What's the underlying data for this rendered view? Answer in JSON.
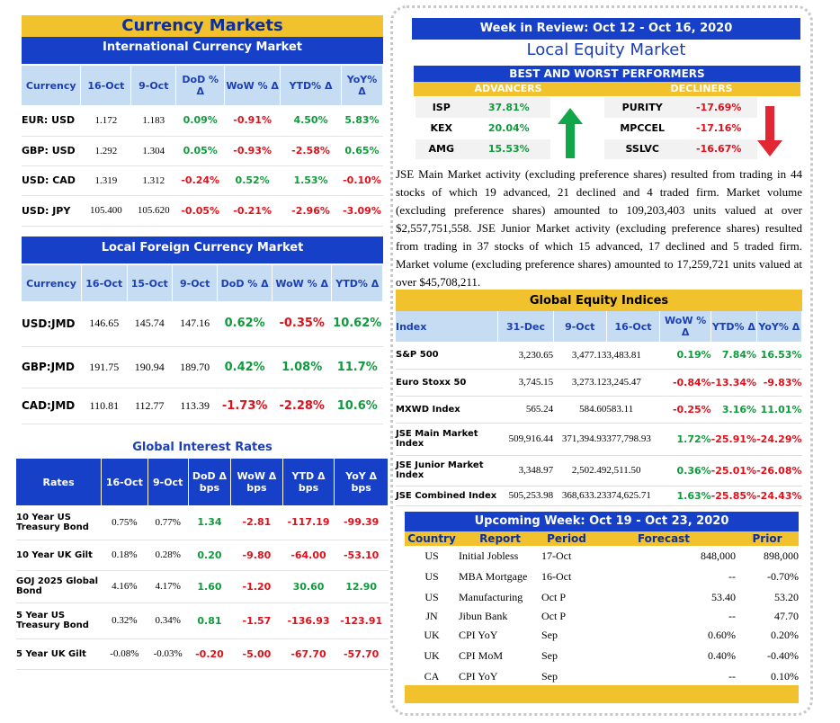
{
  "left": {
    "currency_markets": {
      "title": "Currency Markets",
      "subtitle": "International Currency Market",
      "headers": [
        "Currency",
        "16-Oct",
        "9-Oct",
        "DoD % Δ",
        "WoW % Δ",
        "YTD% Δ",
        "YoY% Δ"
      ],
      "rows": [
        [
          "EUR: USD",
          "1.172",
          "1.183",
          "0.09%",
          "-0.91%",
          "4.50%",
          "5.83%"
        ],
        [
          "GBP: USD",
          "1.292",
          "1.304",
          "0.05%",
          "-0.93%",
          "-2.58%",
          "0.65%"
        ],
        [
          "USD: CAD",
          "1.319",
          "1.312",
          "-0.24%",
          "0.52%",
          "1.53%",
          "-0.10%"
        ],
        [
          "USD: JPY",
          "105.400",
          "105.620",
          "-0.05%",
          "-0.21%",
          "-2.96%",
          "-3.09%"
        ]
      ]
    },
    "local_fx": {
      "title": "Local Foreign Currency Market",
      "headers": [
        "Currency",
        "16-Oct",
        "15-Oct",
        "9-Oct",
        "DoD % Δ",
        "WoW % Δ",
        "YTD% Δ"
      ],
      "rows": [
        [
          "USD:JMD",
          "146.65",
          "145.74",
          "147.16",
          "0.62%",
          "-0.35%",
          "10.62%"
        ],
        [
          "GBP:JMD",
          "191.75",
          "190.94",
          "189.70",
          "0.42%",
          "1.08%",
          "11.7%"
        ],
        [
          "CAD:JMD",
          "110.81",
          "112.77",
          "113.39",
          "-1.73%",
          "-2.28%",
          "10.6%"
        ]
      ]
    },
    "interest": {
      "title": "Global Interest Rates",
      "headers": [
        "Rates",
        "16-Oct",
        "9-Oct",
        "DoD Δ bps",
        "WoW Δ bps",
        "YTD Δ bps",
        "YoY Δ bps"
      ],
      "rows": [
        [
          "10 Year US Treasury Bond",
          "0.75%",
          "0.77%",
          "1.34",
          "-2.81",
          "-117.19",
          "-99.39"
        ],
        [
          "10 Year UK Gilt",
          "0.18%",
          "0.28%",
          "0.20",
          "-9.80",
          "-64.00",
          "-53.10"
        ],
        [
          "GOJ 2025 Global Bond",
          "4.16%",
          "4.17%",
          "1.60",
          "-1.20",
          "30.60",
          "12.90"
        ],
        [
          "5 Year US Treasury Bond",
          "0.32%",
          "0.34%",
          "0.81",
          "-1.57",
          "-136.93",
          "-123.91"
        ],
        [
          "5 Year UK Gilt",
          "-0.08%",
          "-0.03%",
          "-0.20",
          "-5.00",
          "-67.70",
          "-57.70"
        ]
      ]
    }
  },
  "right": {
    "week": "Week in Review:  Oct 12 - Oct 16, 2020",
    "local_equity": "Local Equity Market",
    "performers_title": "BEST AND WORST PERFORMERS",
    "adv_label": "ADVANCERS",
    "dec_label": "DECLINERS",
    "advancers": [
      [
        "ISP",
        "37.81%"
      ],
      [
        "KEX",
        "20.04%"
      ],
      [
        "AMG",
        "15.53%"
      ]
    ],
    "decliners": [
      [
        "PURITY",
        "-17.69%"
      ],
      [
        "MPCCEL",
        "-17.16%"
      ],
      [
        "SSLVC",
        "-16.67%"
      ]
    ],
    "paragraph": "JSE Main Market activity (excluding preference shares) resulted from trading in 44 stocks of which 19 advanced, 21 declined and 4 traded firm. Market volume (excluding preference shares) amounted to 109,203,403 units valued at over $2,557,751,558. JSE Junior Market activity (excluding preference shares) resulted from trading in 37 stocks of which 15 advanced, 17 declined and 5 traded firm. Market volume (excluding preference shares) amounted to 17,259,721 units valued at over $45,708,211.",
    "indices": {
      "title": "Global Equity Indices",
      "headers": [
        "Index",
        "31-Dec",
        "9-Oct",
        "16-Oct",
        "WoW % Δ",
        "YTD% Δ",
        "YoY% Δ"
      ],
      "rows": [
        [
          "S&P 500",
          "3,230.65",
          "3,477.13",
          "3,483.81",
          "0.19%",
          "7.84%",
          "16.53%"
        ],
        [
          "Euro Stoxx 50",
          "3,745.15",
          "3,273.12",
          "3,245.47",
          "-0.84%",
          "-13.34%",
          "-9.83%"
        ],
        [
          "MXWD  Index",
          "565.24",
          "584.60",
          "583.11",
          "-0.25%",
          "3.16%",
          "11.01%"
        ],
        [
          "JSE Main Market Index",
          "509,916.44",
          "371,394.93",
          "377,798.93",
          "1.72%",
          "-25.91%",
          "-24.29%"
        ],
        [
          "JSE Junior Market Index",
          "3,348.97",
          "2,502.49",
          "2,511.50",
          "0.36%",
          "-25.01%",
          "-26.08%"
        ],
        [
          "JSE Combined Index",
          "505,253.98",
          "368,633.23",
          "374,625.71",
          "1.63%",
          "-25.85%",
          "-24.43%"
        ]
      ]
    },
    "upcoming": {
      "title": "Upcoming Week:  Oct 19 - Oct 23, 2020",
      "headers": [
        "Country",
        "Report",
        "Period",
        "Forecast",
        "Prior"
      ],
      "rows": [
        [
          "US",
          "Initial Jobless",
          "17-Oct",
          "848,000",
          "898,000"
        ],
        [
          "US",
          "MBA Mortgage",
          "16-Oct",
          "--",
          "-0.70%"
        ],
        [
          "US",
          "Manufacturing",
          "Oct P",
          "53.40",
          "53.20"
        ],
        [
          "JN",
          "Jibun Bank",
          "Oct P",
          "--",
          "47.70"
        ],
        [
          "UK",
          "CPI YoY",
          "Sep",
          "0.60%",
          "0.20%"
        ],
        [
          "UK",
          "CPI MoM",
          "Sep",
          "0.40%",
          "-0.40%"
        ],
        [
          "CA",
          "CPI YoY",
          "Sep",
          "--",
          "0.10%"
        ]
      ]
    }
  },
  "colors": {
    "gold": "#f2c12e",
    "blue": "#1740c8",
    "green": "#0f9a3c",
    "red": "#e0101a"
  }
}
